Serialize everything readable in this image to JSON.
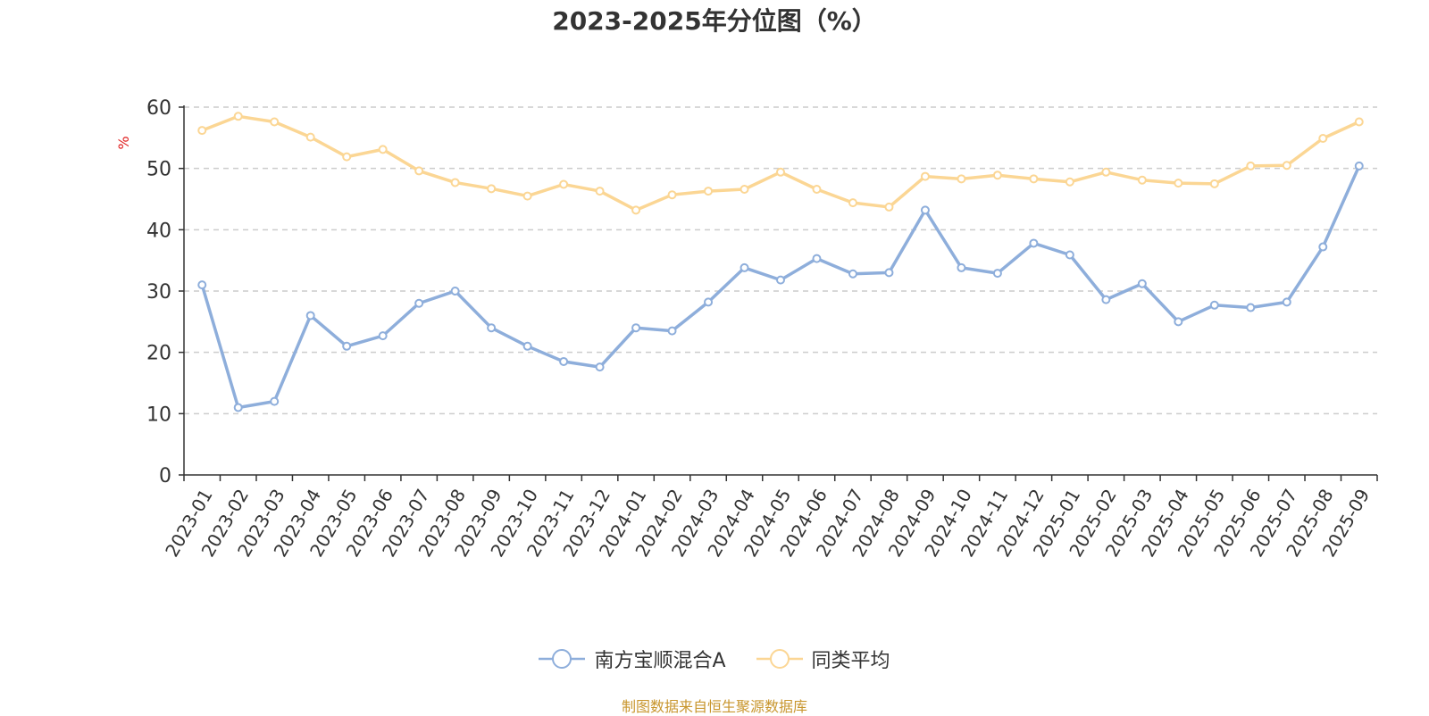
{
  "chart_data": {
    "type": "line",
    "title": "2023-2025年分位图（%）",
    "ylabel": "%",
    "xlabel": "",
    "ylim": [
      0,
      60
    ],
    "yticks": [
      0,
      10,
      20,
      30,
      40,
      50,
      60
    ],
    "grid": true,
    "legend_position": "bottom",
    "x": [
      "2023-01",
      "2023-02",
      "2023-03",
      "2023-04",
      "2023-05",
      "2023-06",
      "2023-07",
      "2023-08",
      "2023-09",
      "2023-10",
      "2023-11",
      "2023-12",
      "2024-01",
      "2024-02",
      "2024-03",
      "2024-04",
      "2024-05",
      "2024-06",
      "2024-07",
      "2024-08",
      "2024-09",
      "2024-10",
      "2024-11",
      "2024-12",
      "2025-01",
      "2025-02",
      "2025-03",
      "2025-04",
      "2025-05",
      "2025-06",
      "2025-07",
      "2025-08",
      "2025-09"
    ],
    "series": [
      {
        "name": "南方宝顺混合A",
        "color": "#8eaedb",
        "values": [
          31,
          11,
          12,
          26,
          21,
          22.7,
          28,
          30,
          24,
          21,
          18.5,
          17.6,
          24,
          23.5,
          28.2,
          33.8,
          31.8,
          35.3,
          32.8,
          33,
          43.2,
          33.8,
          32.9,
          37.8,
          35.9,
          28.6,
          31.2,
          25,
          27.7,
          27.3,
          28.2,
          37.2,
          50.4
        ]
      },
      {
        "name": "同类平均",
        "color": "#fbd694",
        "values": [
          56.2,
          58.5,
          57.6,
          55.1,
          51.9,
          53.1,
          49.6,
          47.7,
          46.7,
          45.5,
          47.4,
          46.3,
          43.2,
          45.7,
          46.3,
          46.6,
          49.4,
          46.6,
          44.4,
          43.7,
          48.7,
          48.3,
          48.9,
          48.3,
          47.8,
          49.4,
          48.1,
          47.6,
          47.5,
          50.4,
          50.5,
          54.9,
          57.6
        ]
      }
    ]
  },
  "source_note": "制图数据来自恒生聚源数据库"
}
